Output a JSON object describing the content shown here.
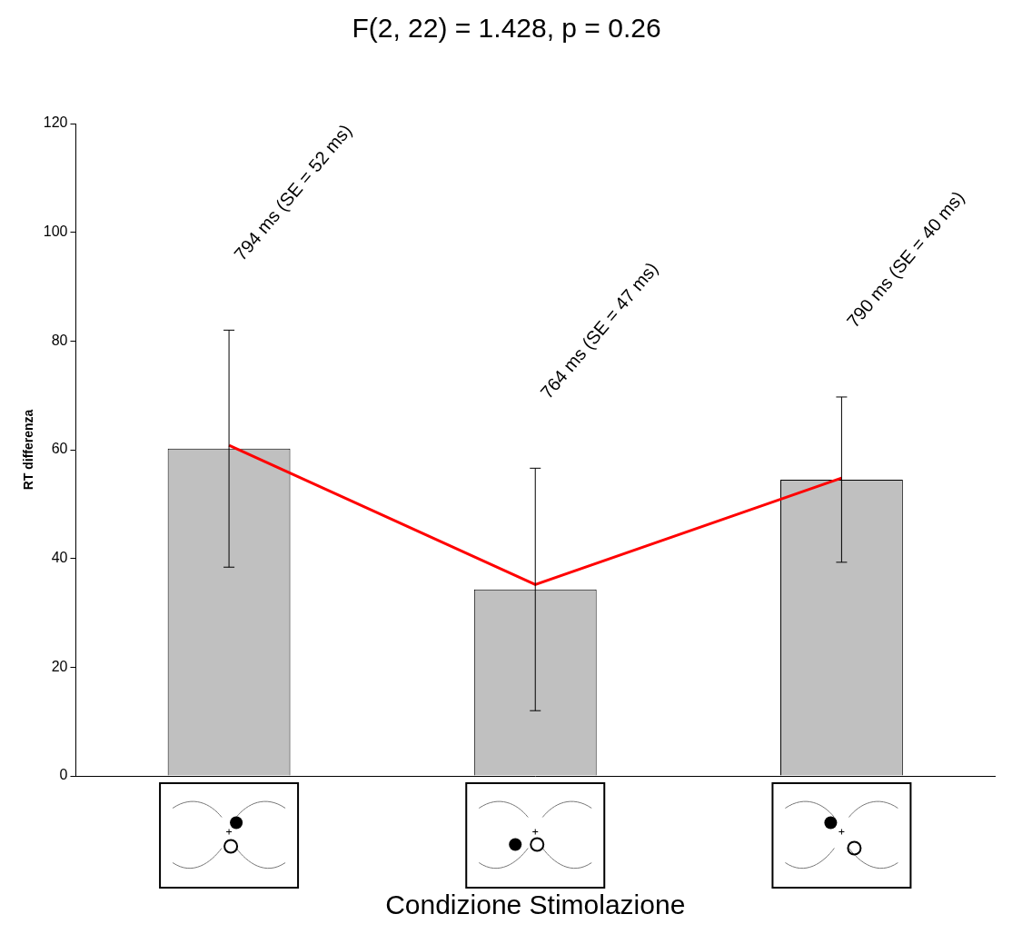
{
  "chart_data": {
    "type": "bar",
    "title": "F(2, 22) = 1.428, p = 0.26",
    "x_label": "Condizione Stimolazione",
    "y_label": "RT differenza",
    "categories": [
      null,
      null,
      null
    ],
    "series": [
      {
        "type": "bar",
        "color": "#c0c0c0",
        "values": [
          60.2,
          34.3,
          54.5
        ],
        "errors": [
          21.8,
          22.3,
          15.2
        ]
      },
      {
        "type": "line",
        "color": "#ff0000",
        "values": [
          60.8,
          35.2,
          54.8
        ]
      }
    ],
    "annotations": [
      "794 ms (SE = 52 ms)",
      "764 ms (SE = 47 ms)",
      "790 ms (SE = 40 ms)"
    ],
    "ylim": [
      0,
      120
    ],
    "yticks": [
      0,
      20,
      40,
      60,
      80,
      100,
      120
    ],
    "grid": false,
    "tick_labels": "y"
  }
}
